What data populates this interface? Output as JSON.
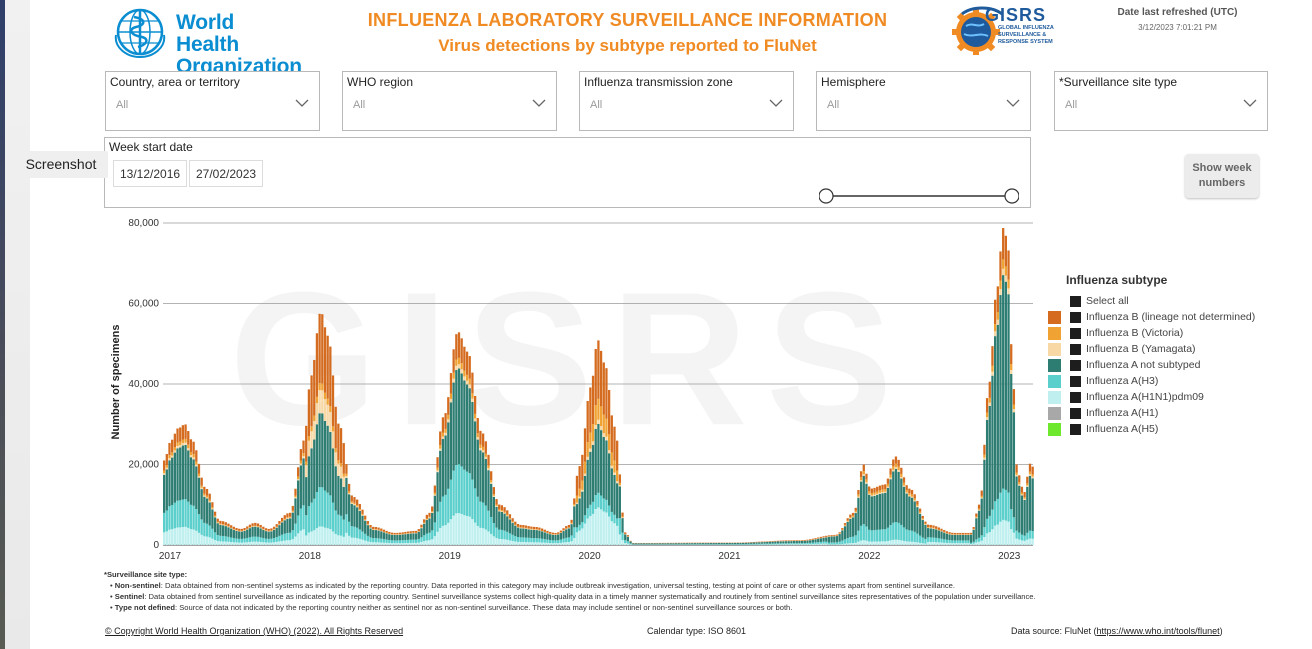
{
  "header": {
    "logo_text_line1": "World Health",
    "logo_text_line2": "Organization",
    "title_line1": "INFLUENZA LABORATORY SURVEILLANCE INFORMATION",
    "title_line2": "Virus detections by subtype reported to FluNet",
    "gisrs_logo_big": "GISRS",
    "gisrs_logo_small1": "GLOBAL INFLUENZA",
    "gisrs_logo_small2": "SURVEILLANCE &",
    "gisrs_logo_small3": "RESPONSE SYSTEM",
    "refresh_label": "Date last refreshed (UTC)",
    "refresh_value": "3/12/2023 7:01:21 PM"
  },
  "filters": [
    {
      "label": "Country, area or territory",
      "value": "All"
    },
    {
      "label": "WHO region",
      "value": "All"
    },
    {
      "label": "Influenza transmission zone",
      "value": "All"
    },
    {
      "label": "Hemisphere",
      "value": "All"
    },
    {
      "label": "*Surveillance site type",
      "value": "All"
    }
  ],
  "date_range": {
    "label": "Week start date",
    "start": "13/12/2016",
    "end": "27/02/2023"
  },
  "screenshot_tag": "Screenshot",
  "week_button": "Show week numbers",
  "icons": {
    "filter_chevron": "chevron-down-icon",
    "who_logo": "who-emblem-icon",
    "gisrs_logo": "gisrs-gear-globe-icon"
  },
  "colors": {
    "b_not_determined": "#d46b1f",
    "b_victoria": "#f0a232",
    "b_yamagata": "#f8d9a6",
    "a_not_subtyped": "#2e7d73",
    "a_h3": "#5bcfcc",
    "a_h1n1pdm09": "#bff0ef",
    "a_h1": "#a8a8a8",
    "a_h5": "#6ee82c"
  },
  "chart_data": {
    "type": "bar",
    "stacked": true,
    "watermark": "GISRS",
    "ylabel": "Number of specimens",
    "ylim": [
      0,
      80000
    ],
    "yticks": [
      "0",
      "20,000",
      "40,000",
      "60,000",
      "80,000"
    ],
    "ytick_values": [
      0,
      20000,
      40000,
      60000,
      80000
    ],
    "xticks": [
      "2017",
      "2018",
      "2019",
      "2020",
      "2021",
      "2022",
      "2023"
    ],
    "xlim": [
      2016.95,
      2023.17
    ],
    "x_spacing": "weekly",
    "grid": "horizontal",
    "legend_title": "Influenza subtype",
    "legend_placement": "right",
    "legend_select_all": "Select all",
    "series": [
      {
        "name": "Influenza B (lineage not determined)",
        "color": "#d46b1f"
      },
      {
        "name": "Influenza B (Victoria)",
        "color": "#f0a232"
      },
      {
        "name": "Influenza B (Yamagata)",
        "color": "#f8d9a6"
      },
      {
        "name": "Influenza A not subtyped",
        "color": "#2e7d73"
      },
      {
        "name": "Influenza A(H3)",
        "color": "#5bcfcc"
      },
      {
        "name": "Influenza A(H1N1)pdm09",
        "color": "#bff0ef"
      },
      {
        "name": "Influenza A(H1)",
        "color": "#a8a8a8"
      },
      {
        "name": "Influenza A(H5)",
        "color": "#6ee82c"
      }
    ],
    "weekly_series_order": [
      "a_h1n1pdm09",
      "a_h3",
      "a_not_subtyped",
      "b_yamagata",
      "b_victoria",
      "b_not_determined"
    ],
    "weekly_total_keypoints": [
      [
        2016.95,
        21000
      ],
      [
        2017.0,
        26000
      ],
      [
        2017.05,
        29000
      ],
      [
        2017.1,
        30000
      ],
      [
        2017.15,
        26000
      ],
      [
        2017.25,
        14000
      ],
      [
        2017.35,
        6000
      ],
      [
        2017.5,
        4000
      ],
      [
        2017.6,
        5500
      ],
      [
        2017.7,
        4000
      ],
      [
        2017.85,
        8000
      ],
      [
        2017.95,
        26000
      ],
      [
        2018.0,
        42000
      ],
      [
        2018.07,
        58000
      ],
      [
        2018.12,
        52000
      ],
      [
        2018.2,
        30000
      ],
      [
        2018.3,
        12000
      ],
      [
        2018.45,
        4500
      ],
      [
        2018.6,
        3000
      ],
      [
        2018.75,
        3500
      ],
      [
        2018.85,
        8000
      ],
      [
        2018.95,
        32000
      ],
      [
        2019.05,
        53000
      ],
      [
        2019.12,
        48000
      ],
      [
        2019.22,
        28000
      ],
      [
        2019.35,
        10000
      ],
      [
        2019.5,
        5000
      ],
      [
        2019.6,
        4500
      ],
      [
        2019.75,
        3000
      ],
      [
        2019.85,
        5000
      ],
      [
        2019.92,
        20000
      ],
      [
        2020.0,
        40000
      ],
      [
        2020.05,
        52000
      ],
      [
        2020.1,
        46000
      ],
      [
        2020.17,
        30000
      ],
      [
        2020.25,
        3000
      ],
      [
        2020.3,
        500
      ],
      [
        2021.0,
        600
      ],
      [
        2021.5,
        1200
      ],
      [
        2021.75,
        2500
      ],
      [
        2021.88,
        8000
      ],
      [
        2021.95,
        20000
      ],
      [
        2022.0,
        14000
      ],
      [
        2022.1,
        15000
      ],
      [
        2022.18,
        22000
      ],
      [
        2022.28,
        14000
      ],
      [
        2022.42,
        5000
      ],
      [
        2022.6,
        3000
      ],
      [
        2022.72,
        3000
      ],
      [
        2022.78,
        10000
      ],
      [
        2022.85,
        40000
      ],
      [
        2022.9,
        62000
      ],
      [
        2022.95,
        78000
      ],
      [
        2022.98,
        75000
      ],
      [
        2023.02,
        40000
      ],
      [
        2023.05,
        18000
      ],
      [
        2023.1,
        13000
      ],
      [
        2023.14,
        20000
      ],
      [
        2023.17,
        19000
      ]
    ]
  },
  "notes": {
    "heading": "*Surveillance site type:",
    "items": [
      {
        "term": "Non-sentinel",
        "text": ": Data obtained from non-sentinel systems as indicated by the reporting country. Data reported in this category may include outbreak investigation, universal testing, testing at point of care or other systems apart from sentinel surveillance."
      },
      {
        "term": "Sentinel",
        "text": ": Data obtained from sentinel surveillance as indicated by the reporting country. Sentinel surveillance systems collect high-quality data in a timely manner systematically and routinely from sentinel surveillance sites representatives of the population under surveillance."
      },
      {
        "term": "Type not defined",
        "text": ": Source of data not indicated by the reporting country neither as sentinel nor as non-sentinel surveillance. These data may include sentinel or non-sentinel surveillance sources or both."
      }
    ]
  },
  "footer": {
    "copyright": "© Copyright World Health Organization (WHO) (2022). All Rights Reserved",
    "calendar": "Calendar type: ISO 8601",
    "source_prefix": "Data source: FluNet (",
    "source_link": "https://www.who.int/tools/flunet",
    "source_suffix": ")"
  }
}
